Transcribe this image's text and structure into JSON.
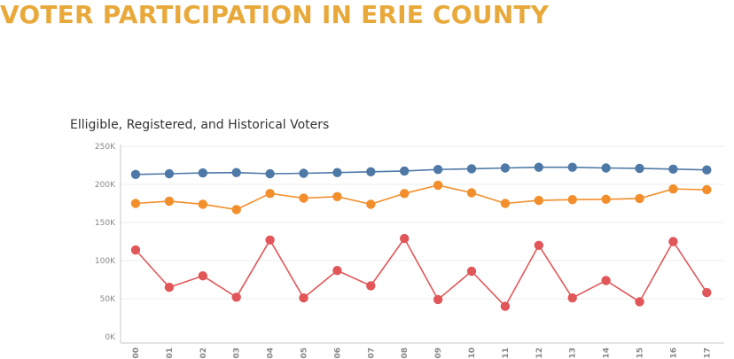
{
  "page": {
    "title": "VOTER PARTICIPATION IN ERIE COUNTY",
    "subtitle": "Elligible, Registered, and Historical Voters"
  },
  "chart_data": {
    "type": "line",
    "title": "",
    "xlabel": "",
    "ylabel": "",
    "categories": [
      "'00",
      "'01",
      "'02",
      "'03",
      "'04",
      "'05",
      "'06",
      "'07",
      "'08",
      "'09",
      "'10",
      "'11",
      "'12",
      "'13",
      "'14",
      "'15",
      "'16",
      "'17"
    ],
    "y_ticks": [
      {
        "value": 0,
        "label": "0K"
      },
      {
        "value": 50000,
        "label": "50K"
      },
      {
        "value": 100000,
        "label": "100K"
      },
      {
        "value": 150000,
        "label": "150K"
      },
      {
        "value": 200000,
        "label": "200K"
      },
      {
        "value": 250000,
        "label": "250K"
      }
    ],
    "ylim": [
      0,
      250000
    ],
    "grid": true,
    "legend": "none",
    "series": [
      {
        "color": "#4e79a7",
        "line_only_first": true,
        "values": [
          213000,
          214000,
          215000,
          215500,
          214000,
          214500,
          215500,
          216500,
          217500,
          219500,
          220500,
          221500,
          222500,
          222500,
          221500,
          221000,
          220000,
          219000
        ]
      },
      {
        "color": "#f28e2b",
        "values": [
          175000,
          178000,
          174000,
          167000,
          188000,
          182000,
          184000,
          174000,
          188000,
          199000,
          189000,
          175000,
          179000,
          180000,
          180500,
          181500,
          194000,
          193000
        ]
      },
      {
        "color": "#e15759",
        "values": [
          114000,
          65000,
          80000,
          52000,
          127000,
          51000,
          87000,
          67000,
          129000,
          49000,
          86000,
          40000,
          120000,
          51000,
          74000,
          46000,
          125000,
          58000
        ]
      }
    ]
  }
}
